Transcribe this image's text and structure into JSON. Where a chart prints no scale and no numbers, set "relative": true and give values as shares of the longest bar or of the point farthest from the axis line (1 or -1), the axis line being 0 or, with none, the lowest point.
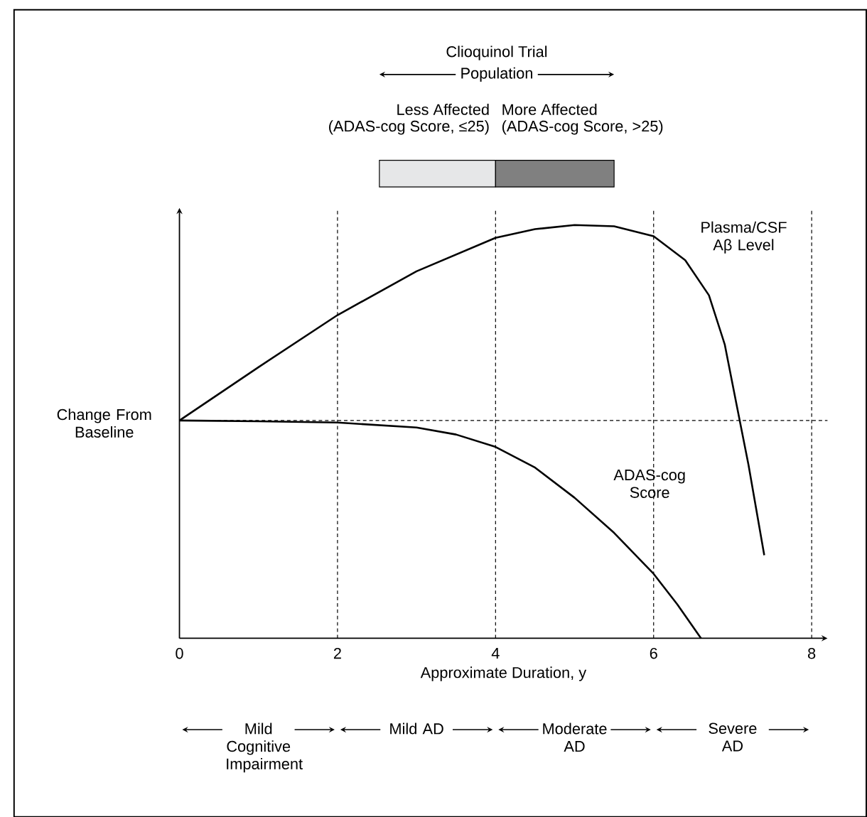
{
  "chart_data": {
    "type": "line",
    "relative": true,
    "xlabel": "Approximate Duration, y",
    "ylabel": "Change From Baseline",
    "xlim": [
      0,
      8.2
    ],
    "xticks": [
      0,
      2,
      4,
      6,
      8
    ],
    "grid": false,
    "marker": "none",
    "line_style": "solid",
    "series": [
      {
        "name": "Plasma/CSF Aβ Level",
        "color": "#000000",
        "x": [
          0,
          1,
          2,
          3,
          4,
          4.5,
          5,
          5.5,
          6,
          6.4,
          6.7,
          6.9,
          7.05,
          7.2,
          7.4
        ],
        "values": [
          0.527,
          0.656,
          0.782,
          0.888,
          0.969,
          0.99,
          1.0,
          0.997,
          0.973,
          0.915,
          0.83,
          0.711,
          0.565,
          0.42,
          0.201
        ]
      },
      {
        "name": "ADAS-cog Score",
        "color": "#000000",
        "x": [
          0,
          1,
          2,
          3,
          3.5,
          4,
          4.5,
          5,
          5.5,
          6,
          6.3,
          6.6
        ],
        "values": [
          0.527,
          0.525,
          0.522,
          0.51,
          0.493,
          0.463,
          0.413,
          0.34,
          0.255,
          0.156,
          0.082,
          0
        ]
      }
    ],
    "ref_lines": [
      {
        "axis": "y",
        "value": 0.527,
        "line_style": "dashed"
      },
      {
        "axis": "x",
        "value": 2,
        "line_style": "dashed"
      },
      {
        "axis": "x",
        "value": 4,
        "line_style": "dashed"
      },
      {
        "axis": "x",
        "value": 6,
        "line_style": "dashed"
      },
      {
        "axis": "x",
        "value": 8,
        "line_style": "dashed"
      }
    ],
    "annotations": [
      "Clioquinol Trial",
      "Population",
      "Less Affected",
      "(ADAS-cog Score, ≤25)",
      "More Affected",
      "(ADAS-cog Score, >25)",
      "Mild Cognitive Impairment",
      "Mild AD",
      "Moderate AD",
      "Severe AD"
    ]
  }
}
